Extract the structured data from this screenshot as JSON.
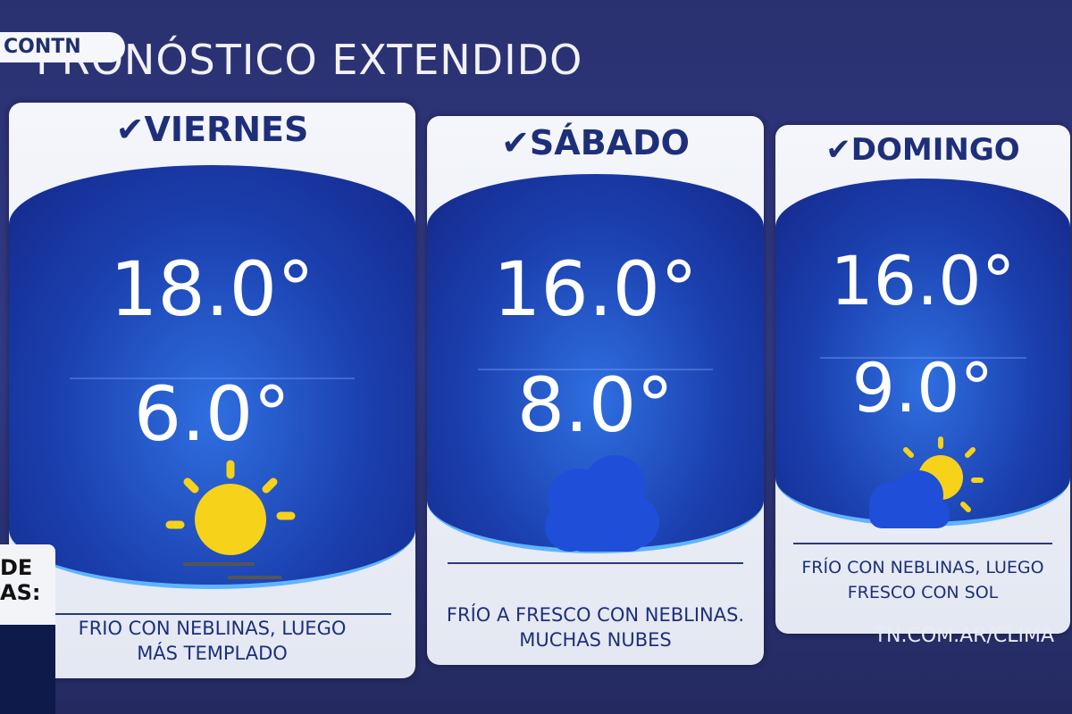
{
  "header": {
    "logo": "CONTN",
    "title": "PRONÓSTICO EXTENDIDO"
  },
  "side": {
    "fragments": [
      "DE",
      "AS:"
    ]
  },
  "days": [
    {
      "name": "VIERNES",
      "max": "18.0°",
      "min": "6.0°",
      "description": [
        "FRIO CON NEBLINAS, LUEGO",
        "MÁS TEMPLADO"
      ]
    },
    {
      "name": "SÁBADO",
      "max": "16.0°",
      "min": "8.0°",
      "description": [
        "FRÍO A FRESCO CON NEBLINAS.",
        "MUCHAS NUBES"
      ]
    },
    {
      "name": "DOMINGO",
      "max": "16.0°",
      "min": "9.0°",
      "description": [
        "FRÍO CON NEBLINAS, LUEGO",
        "FRESCO CON SOL"
      ]
    }
  ],
  "footer": {
    "url": "TN.COM.AR/CLIMA"
  }
}
